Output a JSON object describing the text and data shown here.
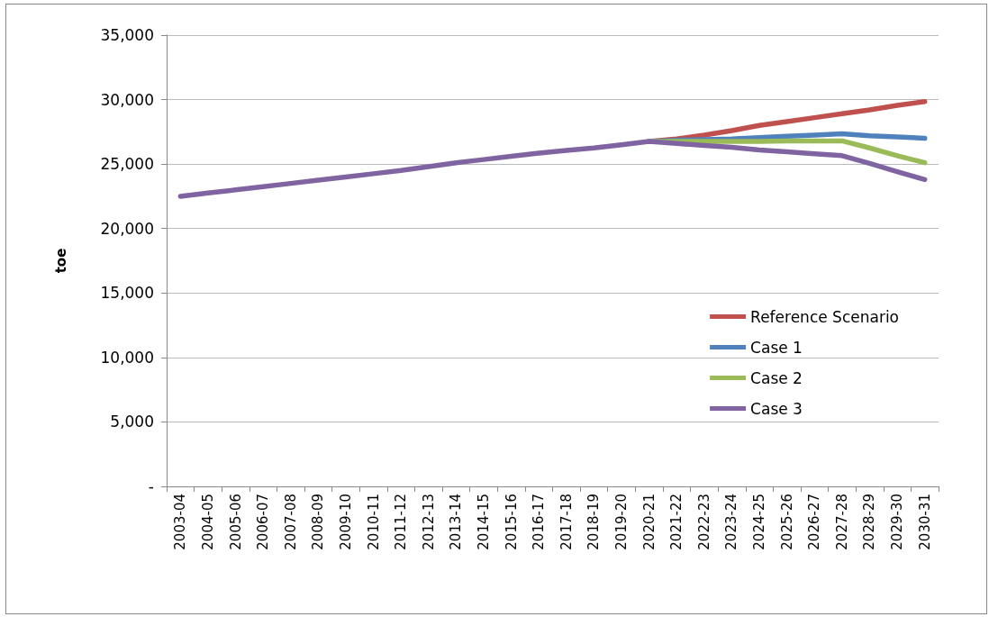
{
  "chart_data": {
    "type": "line",
    "ylabel": "toe",
    "categories": [
      "2003-04",
      "2004-05",
      "2005-06",
      "2006-07",
      "2007-08",
      "2008-09",
      "2009-10",
      "2010-11",
      "2011-12",
      "2012-13",
      "2013-14",
      "2014-15",
      "2015-16",
      "2016-17",
      "2017-18",
      "2018-19",
      "2019-20",
      "2020-21",
      "2021-22",
      "2022-23",
      "2023-24",
      "2024-25",
      "2025-26",
      "2026-27",
      "2027-28",
      "2028-29",
      "2029-30",
      "2030-31"
    ],
    "series": [
      {
        "name": "Reference Scenario",
        "color": "#c0504d",
        "values": [
          null,
          null,
          null,
          null,
          null,
          null,
          null,
          null,
          null,
          null,
          null,
          null,
          null,
          null,
          null,
          null,
          null,
          26750,
          26950,
          27250,
          27600,
          28000,
          28300,
          28600,
          28900,
          29200,
          29550,
          29850
        ]
      },
      {
        "name": "Case 1",
        "color": "#4f81bd",
        "values": [
          null,
          null,
          null,
          null,
          null,
          null,
          null,
          null,
          null,
          null,
          null,
          null,
          null,
          null,
          null,
          null,
          null,
          26750,
          26850,
          26900,
          26950,
          27050,
          27150,
          27250,
          27350,
          27200,
          27100,
          27000
        ]
      },
      {
        "name": "Case 2",
        "color": "#9bbb59",
        "values": [
          null,
          null,
          null,
          null,
          null,
          null,
          null,
          null,
          null,
          null,
          null,
          null,
          null,
          null,
          null,
          null,
          null,
          26750,
          26750,
          26750,
          26750,
          26750,
          26800,
          26800,
          26800,
          26250,
          25650,
          25100
        ]
      },
      {
        "name": "Case 3",
        "color": "#8064a2",
        "values": [
          22500,
          22750,
          23000,
          23250,
          23500,
          23750,
          24000,
          24250,
          24500,
          24800,
          25100,
          25350,
          25600,
          25850,
          26050,
          26250,
          26500,
          26750,
          26600,
          26450,
          26300,
          26100,
          25950,
          25800,
          25650,
          25050,
          24400,
          23800
        ]
      }
    ],
    "ylim": [
      0,
      35000
    ],
    "yticks": [
      {
        "value": 0,
        "label": "-"
      },
      {
        "value": 5000,
        "label": "5,000"
      },
      {
        "value": 10000,
        "label": "10,000"
      },
      {
        "value": 15000,
        "label": "15,000"
      },
      {
        "value": 20000,
        "label": "20,000"
      },
      {
        "value": 25000,
        "label": "25,000"
      },
      {
        "value": 30000,
        "label": "30,000"
      },
      {
        "value": 35000,
        "label": "35,000"
      }
    ],
    "grid": "y",
    "legend": "right",
    "marker": "none",
    "line_style": "solid"
  }
}
